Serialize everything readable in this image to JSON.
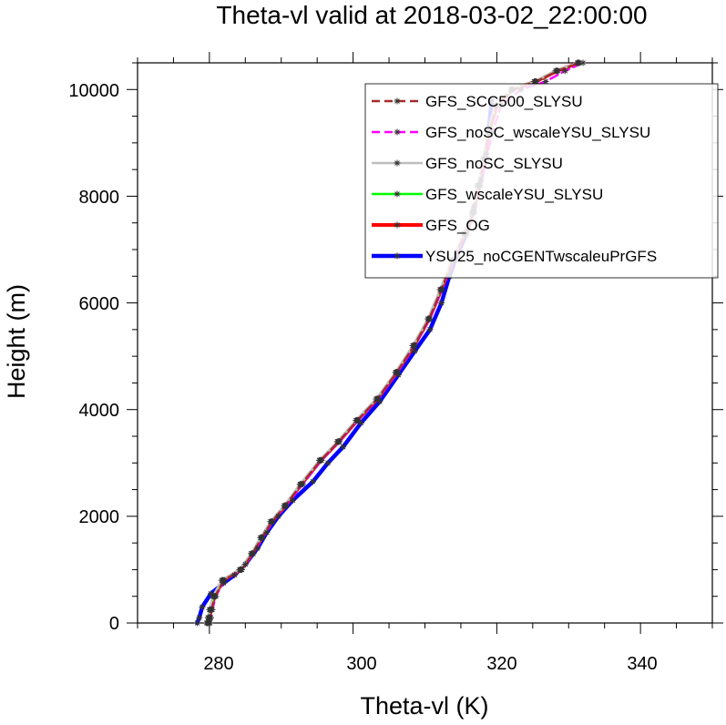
{
  "chart_data": {
    "type": "line",
    "title": "Theta-vl valid at 2018-03-02_22:00:00",
    "xlabel": "Theta-vl (K)",
    "ylabel": "Height (m)",
    "xlim": [
      270,
      350
    ],
    "ylim": [
      0,
      10500
    ],
    "x_ticks": [
      "280",
      "300",
      "320",
      "340"
    ],
    "y_ticks": [
      "0",
      "2000",
      "4000",
      "6000",
      "8000",
      "10000"
    ],
    "legend_position": "top-right",
    "grid": false,
    "series": [
      {
        "name": "GFS_SCC500_SLYSU",
        "color": "#a52a2a",
        "style": "dashed",
        "width": 2.5,
        "points": [
          [
            280.0,
            0
          ],
          [
            280.1,
            100
          ],
          [
            280.3,
            250
          ],
          [
            280.8,
            500
          ],
          [
            282.0,
            800
          ],
          [
            284.5,
            1000
          ],
          [
            286.0,
            1300
          ],
          [
            287.3,
            1600
          ],
          [
            288.7,
            1900
          ],
          [
            290.6,
            2200
          ],
          [
            292.8,
            2600
          ],
          [
            295.5,
            3050
          ],
          [
            298.0,
            3400
          ],
          [
            300.6,
            3800
          ],
          [
            303.4,
            4200
          ],
          [
            306.1,
            4700
          ],
          [
            308.5,
            5200
          ],
          [
            310.6,
            5700
          ],
          [
            312.3,
            6250
          ],
          [
            313.9,
            6800
          ],
          [
            315.6,
            7300
          ],
          [
            316.8,
            7700
          ],
          [
            317.5,
            8200
          ],
          [
            318.3,
            8700
          ],
          [
            318.9,
            9200
          ],
          [
            320.0,
            9700
          ],
          [
            322.2,
            10000
          ],
          [
            325.5,
            10150
          ],
          [
            328.5,
            10350
          ],
          [
            331.5,
            10500
          ]
        ]
      },
      {
        "name": "GFS_noSC_wscaleYSU_SLYSU",
        "color": "#ff00ff",
        "style": "dashed",
        "width": 2.5,
        "points": [
          [
            280.1,
            0
          ],
          [
            280.2,
            100
          ],
          [
            280.4,
            250
          ],
          [
            280.9,
            500
          ],
          [
            282.1,
            800
          ],
          [
            284.5,
            1000
          ],
          [
            286.1,
            1300
          ],
          [
            287.4,
            1600
          ],
          [
            288.8,
            1900
          ],
          [
            290.7,
            2200
          ],
          [
            293.0,
            2600
          ],
          [
            295.6,
            3050
          ],
          [
            298.1,
            3400
          ],
          [
            300.7,
            3800
          ],
          [
            303.5,
            4200
          ],
          [
            306.2,
            4700
          ],
          [
            308.6,
            5200
          ],
          [
            310.7,
            5700
          ],
          [
            312.4,
            6250
          ],
          [
            314.0,
            6800
          ],
          [
            315.6,
            7300
          ],
          [
            316.9,
            7700
          ],
          [
            317.7,
            8200
          ],
          [
            318.6,
            8700
          ],
          [
            319.4,
            9200
          ],
          [
            320.6,
            9700
          ],
          [
            323.4,
            10000
          ],
          [
            326.8,
            10150
          ],
          [
            329.5,
            10350
          ],
          [
            332.0,
            10500
          ]
        ]
      },
      {
        "name": "GFS_noSC_SLYSU",
        "color": "#bebebe",
        "style": "solid",
        "width": 2.5,
        "points": [
          [
            279.6,
            0
          ],
          [
            279.8,
            100
          ],
          [
            280.0,
            250
          ],
          [
            280.5,
            500
          ],
          [
            281.7,
            800
          ],
          [
            284.2,
            1000
          ],
          [
            285.8,
            1300
          ],
          [
            287.1,
            1600
          ],
          [
            288.5,
            1900
          ],
          [
            290.4,
            2200
          ],
          [
            292.6,
            2600
          ],
          [
            295.3,
            3050
          ],
          [
            297.8,
            3400
          ],
          [
            300.4,
            3800
          ],
          [
            303.2,
            4200
          ],
          [
            305.9,
            4700
          ],
          [
            308.3,
            5200
          ],
          [
            310.4,
            5700
          ],
          [
            312.1,
            6250
          ],
          [
            313.7,
            6800
          ],
          [
            315.4,
            7300
          ],
          [
            316.6,
            7700
          ],
          [
            317.3,
            8200
          ],
          [
            318.1,
            8700
          ],
          [
            318.7,
            9200
          ],
          [
            319.8,
            9700
          ],
          [
            322.0,
            10000
          ],
          [
            325.2,
            10150
          ],
          [
            328.2,
            10350
          ],
          [
            331.2,
            10500
          ]
        ]
      },
      {
        "name": "GFS_wscaleYSU_SLYSU",
        "color": "#00ff00",
        "style": "solid",
        "width": 2.5,
        "points": [
          [
            279.7,
            0
          ],
          [
            279.9,
            100
          ],
          [
            280.1,
            250
          ],
          [
            280.6,
            500
          ],
          [
            281.8,
            800
          ],
          [
            284.3,
            1000
          ],
          [
            285.9,
            1300
          ],
          [
            287.2,
            1600
          ],
          [
            288.6,
            1900
          ],
          [
            290.5,
            2200
          ],
          [
            292.7,
            2600
          ],
          [
            295.4,
            3050
          ],
          [
            297.9,
            3400
          ],
          [
            300.5,
            3800
          ],
          [
            303.3,
            4200
          ],
          [
            306.0,
            4700
          ],
          [
            308.4,
            5200
          ],
          [
            310.5,
            5700
          ],
          [
            312.2,
            6250
          ],
          [
            313.8,
            6800
          ],
          [
            315.5,
            7300
          ],
          [
            316.7,
            7700
          ],
          [
            317.4,
            8200
          ],
          [
            318.2,
            8700
          ],
          [
            318.8,
            9200
          ],
          [
            319.9,
            9700
          ],
          [
            322.1,
            10000
          ],
          [
            325.3,
            10150
          ],
          [
            328.3,
            10350
          ],
          [
            331.3,
            10500
          ]
        ]
      },
      {
        "name": "GFS_OG",
        "color": "#ff0000",
        "style": "solid",
        "width": 4,
        "points": [
          [
            279.8,
            0
          ],
          [
            280.0,
            100
          ],
          [
            280.2,
            250
          ],
          [
            280.7,
            500
          ],
          [
            281.9,
            800
          ],
          [
            284.4,
            1000
          ],
          [
            286.0,
            1300
          ],
          [
            287.3,
            1600
          ],
          [
            288.7,
            1900
          ],
          [
            290.6,
            2200
          ],
          [
            292.8,
            2600
          ],
          [
            295.5,
            3050
          ],
          [
            298.0,
            3400
          ],
          [
            300.6,
            3800
          ],
          [
            303.4,
            4200
          ],
          [
            306.1,
            4700
          ],
          [
            308.5,
            5200
          ],
          [
            310.6,
            5700
          ],
          [
            312.3,
            6250
          ],
          [
            313.9,
            6800
          ],
          [
            315.6,
            7300
          ],
          [
            316.8,
            7700
          ],
          [
            317.5,
            8200
          ],
          [
            318.3,
            8700
          ],
          [
            318.9,
            9200
          ],
          [
            320.0,
            9700
          ],
          [
            322.2,
            10000
          ],
          [
            325.4,
            10150
          ],
          [
            328.4,
            10350
          ],
          [
            331.4,
            10500
          ]
        ]
      },
      {
        "name": "YSU25_noCGENTwscaleuPrGFS",
        "color": "#0000ff",
        "style": "solid",
        "width": 4.5,
        "points": [
          [
            278.3,
            0
          ],
          [
            278.6,
            100
          ],
          [
            279.0,
            300
          ],
          [
            280.2,
            550
          ],
          [
            282.0,
            750
          ],
          [
            283.5,
            900
          ],
          [
            285.0,
            1100
          ],
          [
            286.7,
            1400
          ],
          [
            288.0,
            1700
          ],
          [
            289.6,
            2000
          ],
          [
            291.6,
            2300
          ],
          [
            294.4,
            2650
          ],
          [
            296.5,
            3000
          ],
          [
            298.6,
            3300
          ],
          [
            301.1,
            3750
          ],
          [
            303.7,
            4150
          ],
          [
            306.3,
            4650
          ],
          [
            308.6,
            5100
          ],
          [
            310.7,
            5500
          ],
          [
            312.3,
            6000
          ],
          [
            313.4,
            6500
          ],
          [
            314.5,
            6900
          ],
          [
            315.8,
            7300
          ],
          [
            316.8,
            7800
          ],
          [
            317.8,
            8300
          ],
          [
            318.5,
            8800
          ],
          [
            318.9,
            9300
          ],
          [
            319.3,
            9800
          ]
        ]
      }
    ]
  }
}
